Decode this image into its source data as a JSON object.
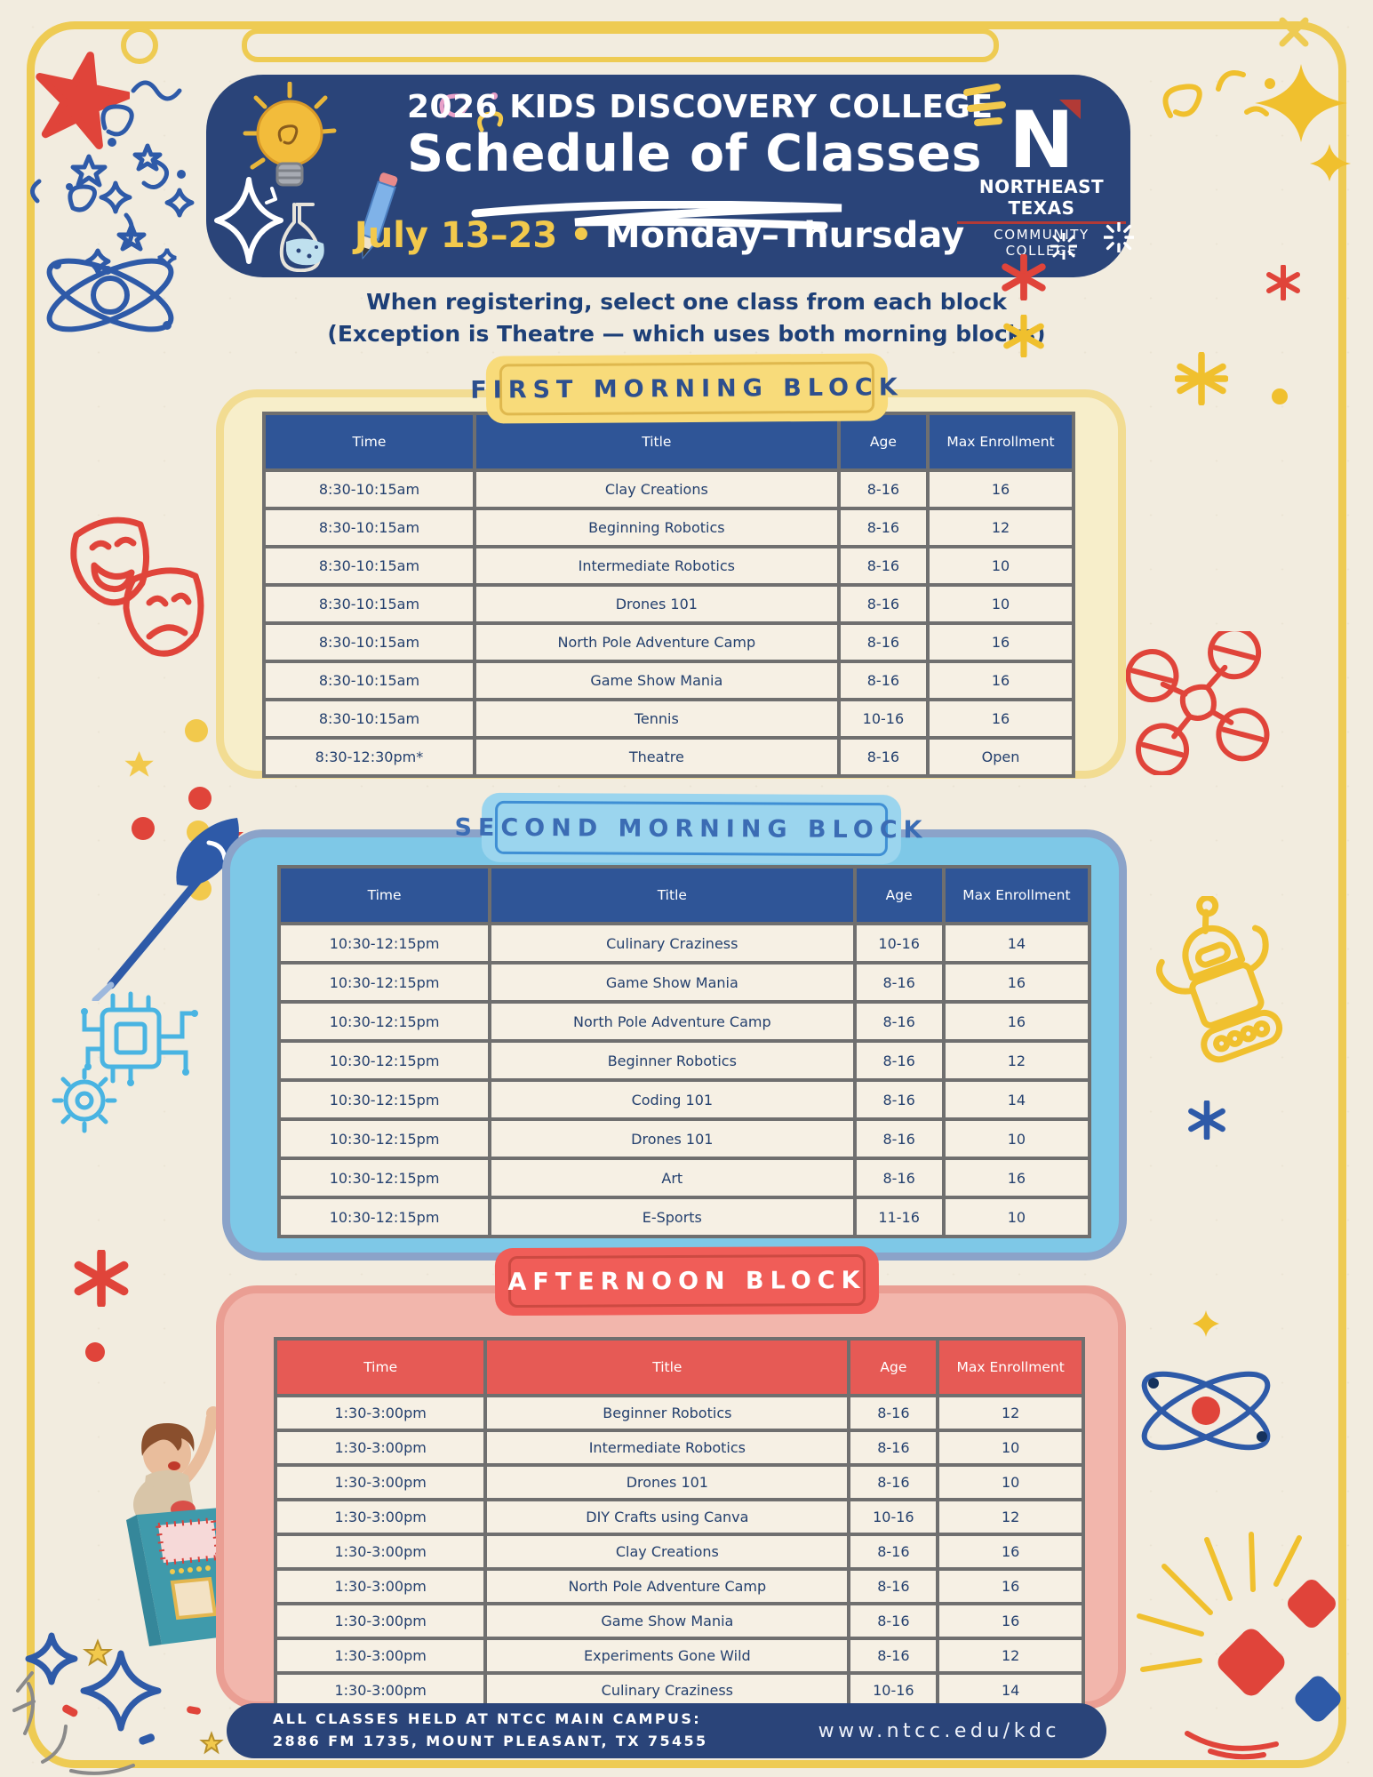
{
  "header": {
    "title_line1": "2026 KIDS DISCOVERY COLLEGE",
    "title_line2": "Schedule of Classes",
    "date_range": "July 13–23",
    "bullet": "•",
    "days": "Monday–Thursday"
  },
  "logo": {
    "letter": "N",
    "line1": "NORTHEAST TEXAS",
    "line2": "COMMUNITY COLLEGE"
  },
  "instructions": {
    "line1": "When registering, select one class from each block",
    "line2": "(Exception is Theatre — which uses both morning blocks)"
  },
  "columns": [
    "Time",
    "Title",
    "Age",
    "Max Enrollment"
  ],
  "blocks": [
    {
      "label": "FIRST MORNING BLOCK",
      "theme": "yellow",
      "rows": [
        [
          "8:30-10:15am",
          "Clay Creations",
          "8-16",
          "16"
        ],
        [
          "8:30-10:15am",
          "Beginning Robotics",
          "8-16",
          "12"
        ],
        [
          "8:30-10:15am",
          "Intermediate Robotics",
          "8-16",
          "10"
        ],
        [
          "8:30-10:15am",
          "Drones 101",
          "8-16",
          "10"
        ],
        [
          "8:30-10:15am",
          "North Pole Adventure Camp",
          "8-16",
          "16"
        ],
        [
          "8:30-10:15am",
          "Game Show Mania",
          "8-16",
          "16"
        ],
        [
          "8:30-10:15am",
          "Tennis",
          "10-16",
          "16"
        ],
        [
          "8:30-12:30pm*",
          "Theatre",
          "8-16",
          "Open"
        ]
      ]
    },
    {
      "label": "SECOND MORNING BLOCK",
      "theme": "blue",
      "rows": [
        [
          "10:30-12:15pm",
          "Culinary Craziness",
          "10-16",
          "14"
        ],
        [
          "10:30-12:15pm",
          "Game Show Mania",
          "8-16",
          "16"
        ],
        [
          "10:30-12:15pm",
          "North Pole Adventure Camp",
          "8-16",
          "16"
        ],
        [
          "10:30-12:15pm",
          "Beginner Robotics",
          "8-16",
          "12"
        ],
        [
          "10:30-12:15pm",
          "Coding 101",
          "8-16",
          "14"
        ],
        [
          "10:30-12:15pm",
          "Drones 101",
          "8-16",
          "10"
        ],
        [
          "10:30-12:15pm",
          "Art",
          "8-16",
          "16"
        ],
        [
          "10:30-12:15pm",
          "E-Sports",
          "11-16",
          "10"
        ]
      ]
    },
    {
      "label": "AFTERNOON BLOCK",
      "theme": "red",
      "rows": [
        [
          "1:30-3:00pm",
          "Beginner Robotics",
          "8-16",
          "12"
        ],
        [
          "1:30-3:00pm",
          "Intermediate Robotics",
          "8-16",
          "10"
        ],
        [
          "1:30-3:00pm",
          "Drones 101",
          "8-16",
          "10"
        ],
        [
          "1:30-3:00pm",
          "DIY Crafts using Canva",
          "10-16",
          "12"
        ],
        [
          "1:30-3:00pm",
          "Clay Creations",
          "8-16",
          "16"
        ],
        [
          "1:30-3:00pm",
          "North Pole Adventure Camp",
          "8-16",
          "16"
        ],
        [
          "1:30-3:00pm",
          "Game Show Mania",
          "8-16",
          "16"
        ],
        [
          "1:30-3:00pm",
          "Experiments Gone Wild",
          "8-16",
          "12"
        ],
        [
          "1:30-3:00pm",
          "Culinary Craziness",
          "10-16",
          "14"
        ]
      ]
    }
  ],
  "footer": {
    "line1": "ALL CLASSES HELD AT NTCC MAIN CAMPUS:",
    "line2": "2886 FM 1735, MOUNT PLEASANT, TX 75455",
    "url": "www.ntcc.edu/kdc"
  },
  "colors": {
    "page_background": "#f2ecdf",
    "frame_yellow": "#eecb53",
    "header_navy": "#2a4479",
    "accent_yellow": "#f2c94c",
    "table_header_blue": "#2f5597",
    "table_header_red": "#e65a55",
    "cell_cream": "#f6f0e4",
    "cell_border_gray": "#6f6f6f",
    "text_navy": "#24406e",
    "block1_fill": "#f7eeca",
    "block2_fill": "#7ec8e7",
    "block3_fill": "#f2b6ac",
    "logo_red": "#b23a36"
  },
  "decorations": [
    "red-star-doodle",
    "blue-confetti",
    "atom-doodle",
    "theater-masks",
    "confetti-dots",
    "paintbrush",
    "circuit-chip",
    "red-asterisk",
    "game-show-host",
    "yellow-confetti",
    "yellow-sparkles",
    "drone",
    "robot",
    "atom-red-nucleus",
    "celebration-kites",
    "lightbulb",
    "flask",
    "pencil",
    "sparkle"
  ]
}
